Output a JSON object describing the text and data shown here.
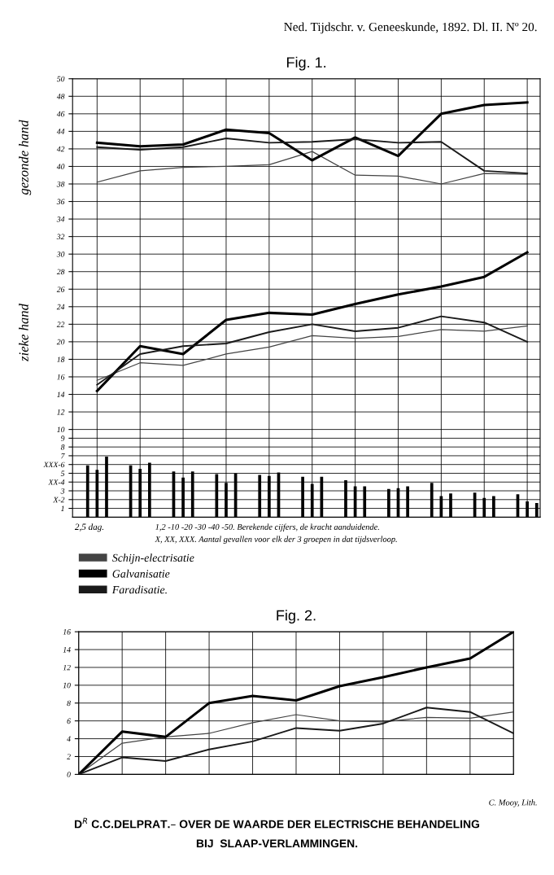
{
  "chart_data": [
    {
      "type": "line",
      "title": "Fig. 1.",
      "annotations": [
        "Ned. Tijdschr. v. Geneeskunde, 1892. Dl. II. Nº 20.",
        "gezonde hand",
        "zieke hand",
        "2,5 dag.",
        "1,2 -10 -20 -30 -40 -50. Berekende cijfers, de kracht aanduidende.",
        "X, XX, XXX. Aantal gevallen voor elk der 3 groepen in dat tijdsverloop."
      ],
      "categories": [
        null,
        null,
        null,
        null,
        null,
        null,
        null,
        null,
        null,
        null,
        null
      ],
      "ylim": [
        0,
        50
      ],
      "yticks": [
        1,
        {
          "value": 2,
          "label": "X-2"
        },
        3,
        {
          "value": 4,
          "label": "XX-4"
        },
        5,
        {
          "value": 6,
          "label": "XXX-6"
        },
        7,
        8,
        9,
        10,
        12,
        14,
        16,
        18,
        20,
        22,
        24,
        26,
        28,
        30,
        32,
        34,
        36,
        38,
        40,
        42,
        44,
        46,
        48,
        50
      ],
      "grid": true,
      "legend": "bottom left",
      "series": [
        {
          "type": "bar",
          "color": "#000000",
          "values": [
            5.9,
            5.9,
            5.2,
            4.9,
            4.8,
            4.6,
            4.2,
            3.2,
            3.9,
            2.8,
            2.6
          ]
        },
        {
          "type": "bar",
          "color": "#000000",
          "values": [
            5.4,
            5.5,
            4.5,
            3.9,
            4.7,
            3.8,
            3.5,
            3.3,
            2.4,
            2.2,
            1.8
          ]
        },
        {
          "type": "bar",
          "color": "#000000",
          "values": [
            6.9,
            6.2,
            5.2,
            5.0,
            5.1,
            4.6,
            3.5,
            3.5,
            2.7,
            2.4,
            1.6
          ]
        },
        {
          "type": "line",
          "name": "Schijn-electrisatie",
          "color": "#444444",
          "values": [
            38.2,
            39.5,
            39.9,
            40.0,
            40.2,
            41.7,
            39.0,
            38.9,
            38.0,
            39.2,
            39.1
          ]
        },
        {
          "type": "line",
          "name": "Galvanisatie",
          "color": "#000000",
          "values": [
            42.7,
            42.3,
            42.5,
            44.2,
            43.8,
            40.7,
            43.3,
            41.2,
            46.0,
            47.0,
            47.3
          ]
        },
        {
          "type": "line",
          "name": "Faradisatie.",
          "color": "#1a1a1a",
          "values": [
            42.2,
            41.9,
            42.2,
            43.2,
            42.7,
            42.8,
            43.1,
            42.7,
            42.8,
            39.5,
            39.2
          ]
        },
        {
          "type": "line",
          "color": "#444444",
          "values": [
            15.6,
            17.6,
            17.3,
            18.6,
            19.4,
            20.7,
            20.4,
            20.6,
            21.4,
            21.2,
            21.8
          ]
        },
        {
          "type": "line",
          "color": "#000000",
          "values": [
            14.4,
            19.5,
            18.6,
            22.5,
            23.3,
            23.1,
            24.3,
            25.4,
            26.3,
            27.4,
            30.2
          ]
        },
        {
          "type": "line",
          "color": "#1a1a1a",
          "values": [
            15.1,
            18.6,
            19.5,
            19.8,
            21.1,
            22.0,
            21.2,
            21.6,
            22.9,
            22.2,
            20.0
          ]
        }
      ]
    },
    {
      "type": "line",
      "title": "Fig. 2.",
      "annotations": [
        "C. Mooy, Lith.",
        "D$^{R}$ C.C.DELPRAT.– OVER DE WAARDE DER ELECTRISCHE BEHANDELING",
        "BIJ  SLAAP-VERLAMMINGEN."
      ],
      "categories": [
        null,
        null,
        null,
        null,
        null,
        null,
        null,
        null,
        null,
        null,
        null
      ],
      "ylim": [
        0,
        16
      ],
      "yticks": [
        0,
        2,
        4,
        6,
        8,
        10,
        12,
        14,
        16
      ],
      "grid": true,
      "series": [
        {
          "color": "#444444",
          "values": [
            0,
            3.5,
            4.2,
            4.6,
            5.8,
            6.7,
            6.0,
            5.9,
            6.4,
            6.3,
            7.0
          ]
        },
        {
          "color": "#000000",
          "values": [
            0,
            4.8,
            4.2,
            8.0,
            8.8,
            8.3,
            9.9,
            10.9,
            12.0,
            13.0,
            16.0
          ]
        },
        {
          "color": "#1a1a1a",
          "values": [
            0,
            1.9,
            1.5,
            2.8,
            3.7,
            5.2,
            4.9,
            5.7,
            7.5,
            7.0,
            4.6
          ]
        }
      ]
    }
  ]
}
